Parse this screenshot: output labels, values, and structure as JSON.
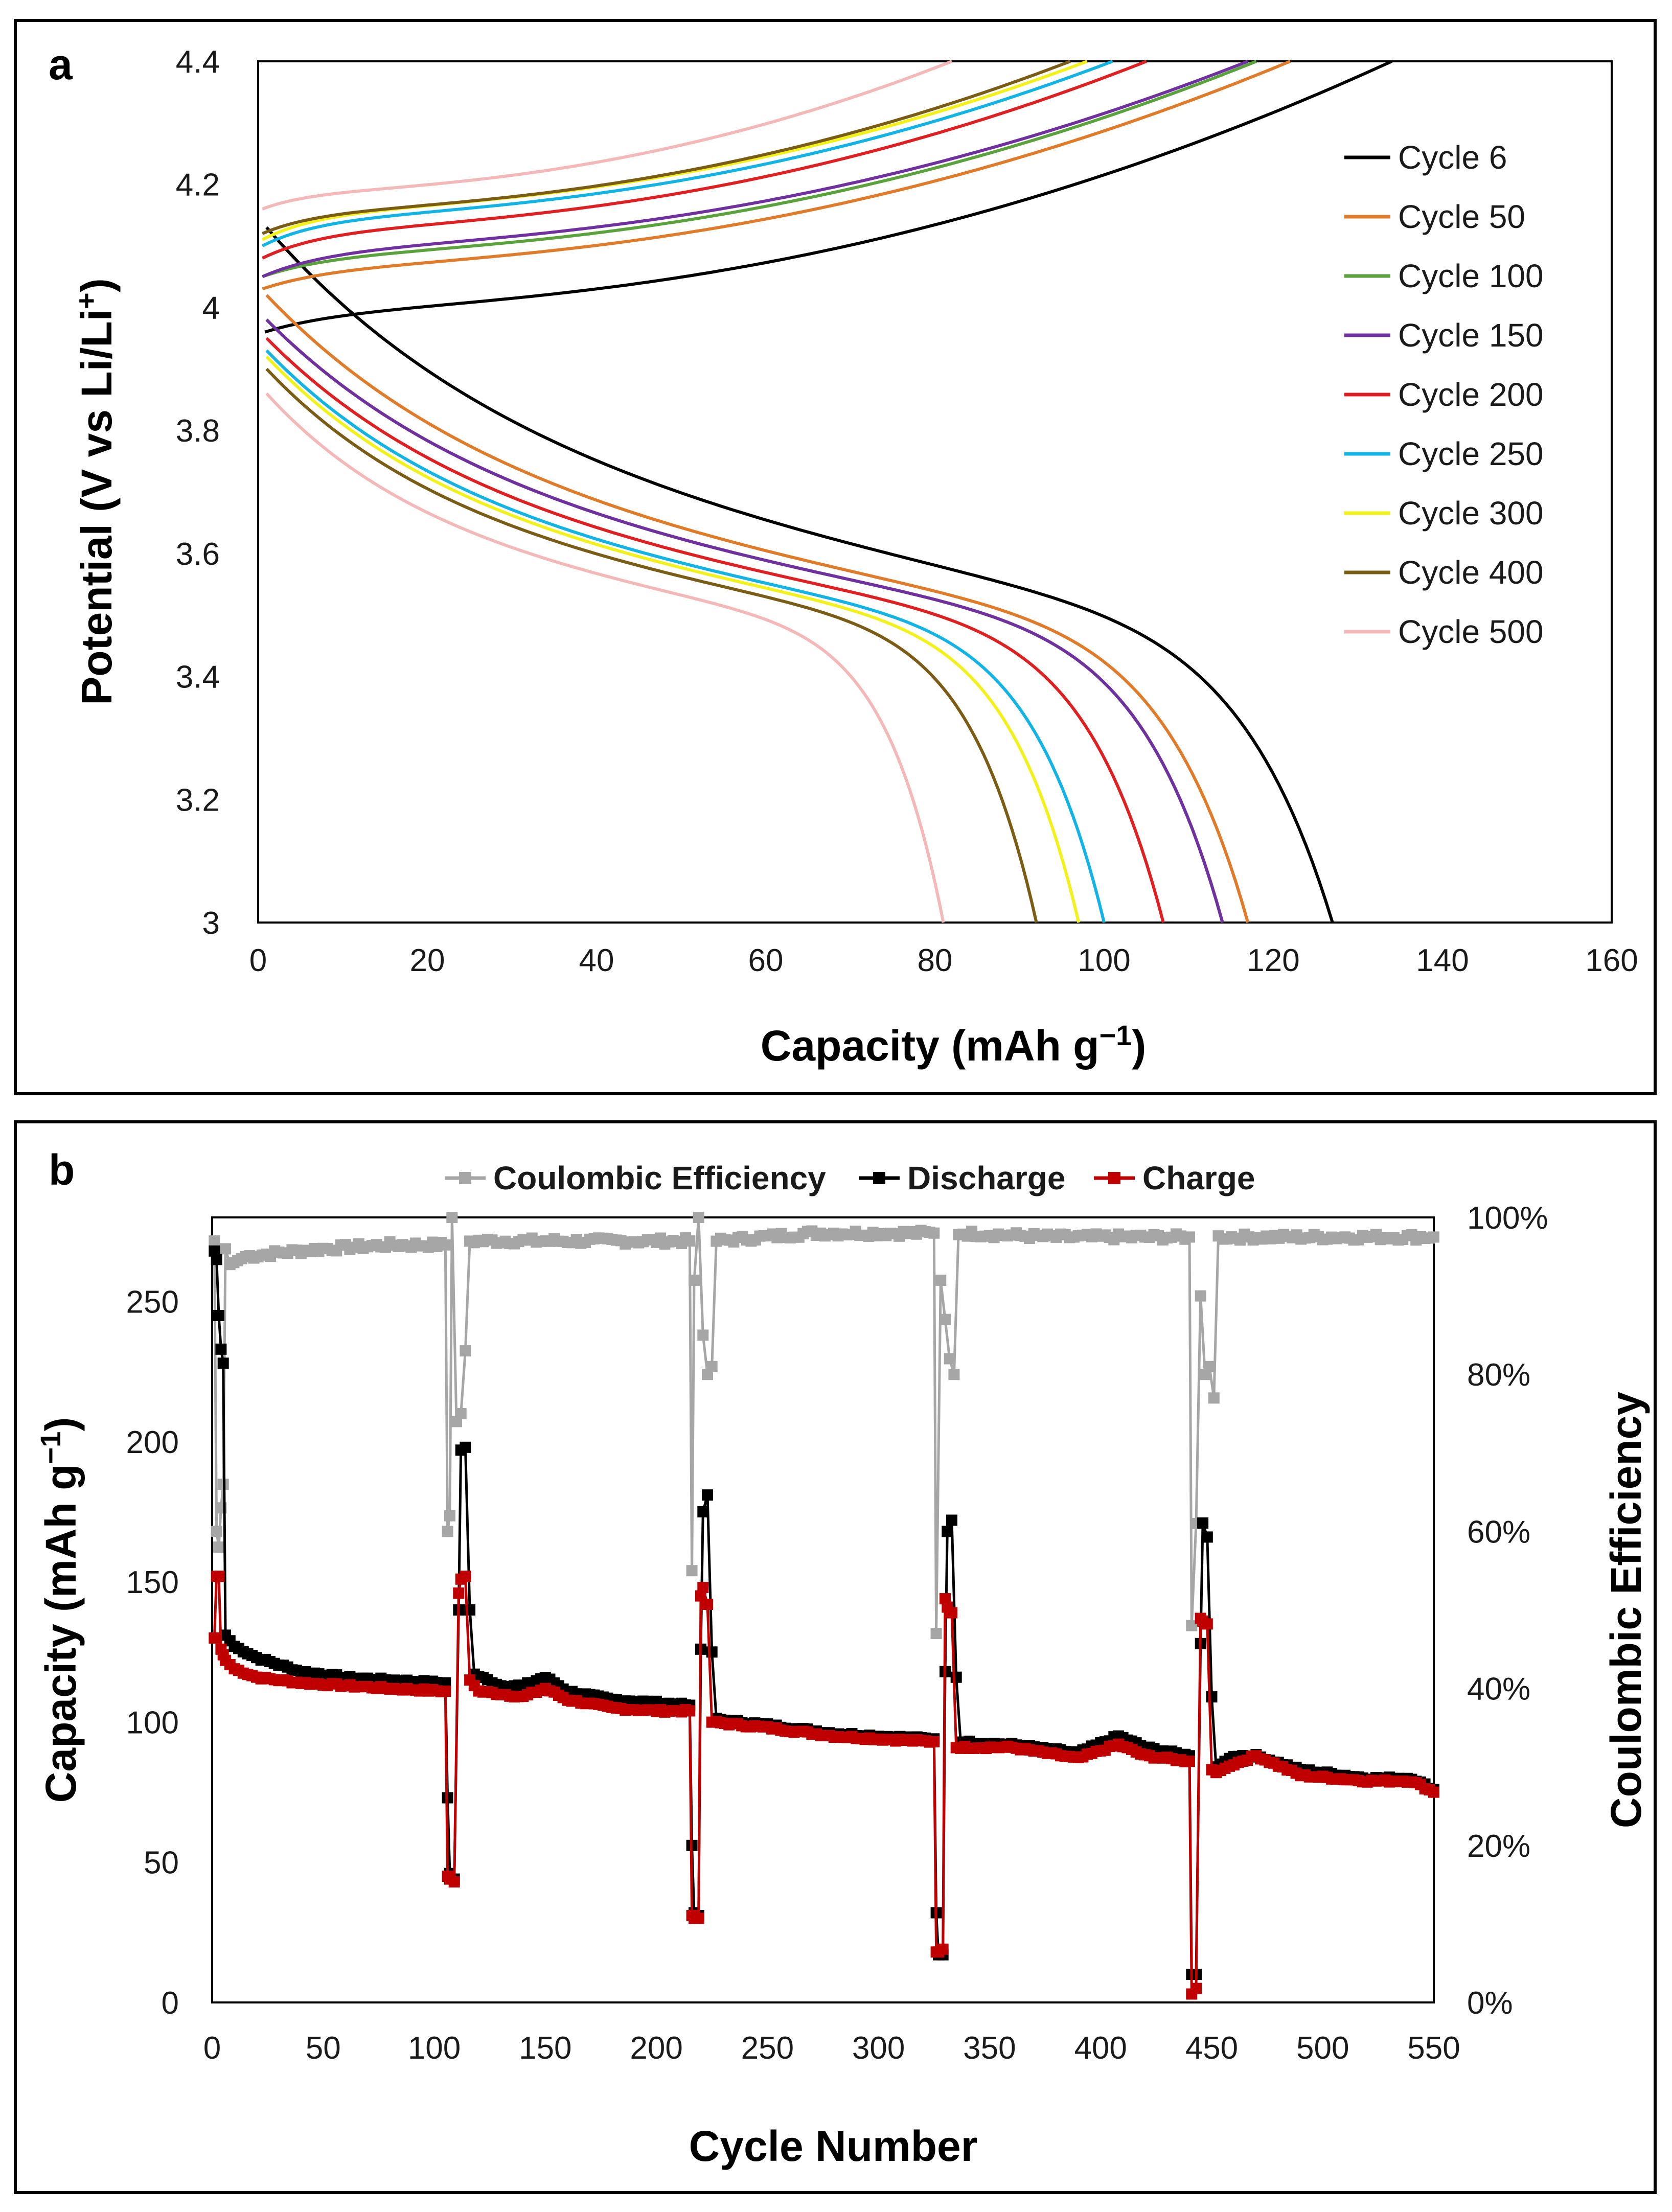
{
  "chart_data": [
    {
      "panel": "a",
      "type": "line",
      "xlabel": "Capacity (mAh g",
      "xlabel_sup": "−1",
      "xlabel_end": ")",
      "ylabel": "Potential (V vs Li/Li",
      "ylabel_sup": "+",
      "ylabel_end": ")",
      "xlim": [
        0,
        160
      ],
      "ylim": [
        3,
        4.4
      ],
      "xticks": [
        0,
        20,
        40,
        60,
        80,
        100,
        120,
        140,
        160
      ],
      "yticks": [
        3,
        3.2,
        3.4,
        3.6,
        3.8,
        4,
        4.2,
        4.4
      ],
      "ytick_labels": [
        "3",
        "3.2",
        "3.4",
        "3.6",
        "3.8",
        "4",
        "4.2",
        "4.4"
      ],
      "legend_position": "right",
      "series": [
        {
          "name": "Cycle 6",
          "color": "#000000",
          "charge_start": [
            0.8,
            3.96
          ],
          "charge_plateau": 4.0,
          "charge_end_capacity": 134,
          "discharge_start": [
            1.0,
            4.13
          ],
          "discharge_end_capacity": 127
        },
        {
          "name": "Cycle 50",
          "color": "#e07b2a",
          "charge_start": [
            0.5,
            4.03
          ],
          "charge_plateau": 4.07,
          "charge_end_capacity": 122,
          "discharge_start": [
            1.0,
            4.02
          ],
          "discharge_end_capacity": 117
        },
        {
          "name": "Cycle 100",
          "color": "#5aa33c",
          "charge_start": [
            0.5,
            4.05
          ],
          "charge_plateau": 4.09,
          "charge_end_capacity": 118,
          "discharge_start": [
            1.0,
            3.98
          ],
          "discharge_end_capacity": 114
        },
        {
          "name": "Cycle 150",
          "color": "#7030a0",
          "charge_start": [
            0.5,
            4.05
          ],
          "charge_plateau": 4.1,
          "charge_end_capacity": 117,
          "discharge_start": [
            1.0,
            3.98
          ],
          "discharge_end_capacity": 114
        },
        {
          "name": "Cycle 200",
          "color": "#e02020",
          "charge_start": [
            0.5,
            4.08
          ],
          "charge_plateau": 4.13,
          "charge_end_capacity": 105,
          "discharge_start": [
            1.0,
            3.95
          ],
          "discharge_end_capacity": 107
        },
        {
          "name": "Cycle 250",
          "color": "#12b4e6",
          "charge_start": [
            0.5,
            4.1
          ],
          "charge_plateau": 4.15,
          "charge_end_capacity": 101,
          "discharge_start": [
            1.0,
            3.93
          ],
          "discharge_end_capacity": 100
        },
        {
          "name": "Cycle 300",
          "color": "#f2f21a",
          "charge_start": [
            0.5,
            4.11
          ],
          "charge_plateau": 4.16,
          "charge_end_capacity": 98,
          "discharge_start": [
            1.0,
            3.92
          ],
          "discharge_end_capacity": 97
        },
        {
          "name": "Cycle 400",
          "color": "#7a5c14",
          "charge_start": [
            0.5,
            4.12
          ],
          "charge_plateau": 4.16,
          "charge_end_capacity": 96,
          "discharge_start": [
            1.0,
            3.9
          ],
          "discharge_end_capacity": 92
        },
        {
          "name": "Cycle 500",
          "color": "#f4b8b8",
          "charge_start": [
            0.5,
            4.16
          ],
          "charge_plateau": 4.19,
          "charge_end_capacity": 82,
          "discharge_start": [
            1.0,
            3.86
          ],
          "discharge_end_capacity": 81
        }
      ]
    },
    {
      "panel": "b",
      "type": "line",
      "xlabel": "Cycle Number",
      "ylabel": "Capacity (mAh g",
      "ylabel_sup": "−1",
      "ylabel_end": ")",
      "y2label": "Coulombic Efficiency",
      "xlim": [
        0,
        550
      ],
      "ylim": [
        0,
        280
      ],
      "y2lim": [
        0,
        1
      ],
      "xticks": [
        0,
        50,
        100,
        150,
        200,
        250,
        300,
        350,
        400,
        450,
        500,
        550
      ],
      "yticks": [
        0,
        50,
        100,
        150,
        200,
        250
      ],
      "y2ticks": [
        0,
        0.2,
        0.4,
        0.6,
        0.8,
        1.0
      ],
      "y2tick_labels": [
        "0%",
        "20%",
        "40%",
        "60%",
        "80%",
        "100%"
      ],
      "legend_position": "top",
      "series": [
        {
          "name": "Coulombic Efficiency",
          "color": "#a6a6a6",
          "axis": "right",
          "points": [
            [
              1,
              0.97
            ],
            [
              2,
              0.6
            ],
            [
              3,
              0.58
            ],
            [
              4,
              0.63
            ],
            [
              5,
              0.66
            ],
            [
              6,
              0.96
            ],
            [
              8,
              0.94
            ],
            [
              15,
              0.95
            ],
            [
              30,
              0.955
            ],
            [
              50,
              0.96
            ],
            [
              80,
              0.965
            ],
            [
              105,
              0.965
            ],
            [
              106,
              0.6
            ],
            [
              107,
              0.62
            ],
            [
              108,
              1.0
            ],
            [
              110,
              0.74
            ],
            [
              112,
              0.75
            ],
            [
              114,
              0.83
            ],
            [
              116,
              0.97
            ],
            [
              150,
              0.97
            ],
            [
              200,
              0.97
            ],
            [
              215,
              0.97
            ],
            [
              216,
              0.55
            ],
            [
              217,
              0.92
            ],
            [
              219,
              1.0
            ],
            [
              221,
              0.85
            ],
            [
              223,
              0.8
            ],
            [
              225,
              0.81
            ],
            [
              227,
              0.97
            ],
            [
              270,
              0.98
            ],
            [
              325,
              0.98
            ],
            [
              326,
              0.47
            ],
            [
              328,
              0.92
            ],
            [
              330,
              0.87
            ],
            [
              332,
              0.82
            ],
            [
              334,
              0.8
            ],
            [
              336,
              0.98
            ],
            [
              380,
              0.975
            ],
            [
              440,
              0.975
            ],
            [
              441,
              0.48
            ],
            [
              443,
              0.61
            ],
            [
              445,
              0.9
            ],
            [
              447,
              0.8
            ],
            [
              449,
              0.81
            ],
            [
              451,
              0.77
            ],
            [
              453,
              0.975
            ],
            [
              500,
              0.975
            ],
            [
              550,
              0.975
            ]
          ]
        },
        {
          "name": "Discharge",
          "color": "#000000",
          "axis": "left",
          "points": [
            [
              1,
              268
            ],
            [
              2,
              265
            ],
            [
              3,
              245
            ],
            [
              4,
              233
            ],
            [
              5,
              228
            ],
            [
              6,
              131
            ],
            [
              10,
              127
            ],
            [
              20,
              123
            ],
            [
              40,
              118
            ],
            [
              60,
              116
            ],
            [
              80,
              115
            ],
            [
              105,
              114
            ],
            [
              106,
              73
            ],
            [
              107,
              46
            ],
            [
              109,
              44
            ],
            [
              111,
              140
            ],
            [
              112,
              197
            ],
            [
              114,
              198
            ],
            [
              116,
              140
            ],
            [
              118,
              117
            ],
            [
              130,
              113
            ],
            [
              140,
              113
            ],
            [
              150,
              116
            ],
            [
              160,
              111
            ],
            [
              180,
              108
            ],
            [
              200,
              107
            ],
            [
              215,
              106
            ],
            [
              216,
              56
            ],
            [
              217,
              32
            ],
            [
              219,
              31
            ],
            [
              220,
              126
            ],
            [
              221,
              175
            ],
            [
              223,
              181
            ],
            [
              225,
              125
            ],
            [
              227,
              101
            ],
            [
              250,
              99
            ],
            [
              280,
              96
            ],
            [
              300,
              95
            ],
            [
              325,
              94
            ],
            [
              326,
              32
            ],
            [
              327,
              17
            ],
            [
              329,
              17
            ],
            [
              330,
              118
            ],
            [
              331,
              168
            ],
            [
              333,
              172
            ],
            [
              335,
              116
            ],
            [
              337,
              93
            ],
            [
              360,
              92
            ],
            [
              390,
              89
            ],
            [
              408,
              95
            ],
            [
              420,
              91
            ],
            [
              440,
              88
            ],
            [
              441,
              10
            ],
            [
              443,
              10
            ],
            [
              445,
              128
            ],
            [
              446,
              171
            ],
            [
              448,
              166
            ],
            [
              450,
              109
            ],
            [
              452,
              84
            ],
            [
              460,
              88
            ],
            [
              470,
              88
            ],
            [
              490,
              83
            ],
            [
              520,
              80
            ],
            [
              540,
              80
            ],
            [
              550,
              76
            ]
          ]
        },
        {
          "name": "Charge",
          "color": "#c00000",
          "axis": "left",
          "points": [
            [
              1,
              130
            ],
            [
              2,
              152
            ],
            [
              3,
              152
            ],
            [
              4,
              126
            ],
            [
              5,
              124
            ],
            [
              6,
              122
            ],
            [
              10,
              119
            ],
            [
              20,
              116
            ],
            [
              40,
              114
            ],
            [
              60,
              113
            ],
            [
              80,
              112
            ],
            [
              105,
              111
            ],
            [
              106,
              45
            ],
            [
              107,
              44
            ],
            [
              109,
              43
            ],
            [
              111,
              146
            ],
            [
              112,
              151
            ],
            [
              114,
              152
            ],
            [
              116,
              115
            ],
            [
              120,
              111
            ],
            [
              140,
              109
            ],
            [
              150,
              112
            ],
            [
              160,
              108
            ],
            [
              180,
              105
            ],
            [
              200,
              104
            ],
            [
              215,
              104
            ],
            [
              216,
              31
            ],
            [
              217,
              30
            ],
            [
              219,
              30
            ],
            [
              220,
              145
            ],
            [
              221,
              148
            ],
            [
              223,
              142
            ],
            [
              225,
              100
            ],
            [
              250,
              98
            ],
            [
              280,
              95
            ],
            [
              300,
              94
            ],
            [
              325,
              93
            ],
            [
              326,
              18
            ],
            [
              327,
              18
            ],
            [
              329,
              19
            ],
            [
              330,
              144
            ],
            [
              331,
              141
            ],
            [
              333,
              139
            ],
            [
              335,
              91
            ],
            [
              360,
              91
            ],
            [
              390,
              87
            ],
            [
              408,
              92
            ],
            [
              420,
              88
            ],
            [
              440,
              86
            ],
            [
              441,
              3
            ],
            [
              443,
              5
            ],
            [
              445,
              137
            ],
            [
              446,
              136
            ],
            [
              448,
              135
            ],
            [
              450,
              83
            ],
            [
              452,
              82
            ],
            [
              460,
              85
            ],
            [
              470,
              88
            ],
            [
              490,
              81
            ],
            [
              520,
              79
            ],
            [
              540,
              79
            ],
            [
              550,
              75
            ]
          ]
        }
      ]
    }
  ]
}
